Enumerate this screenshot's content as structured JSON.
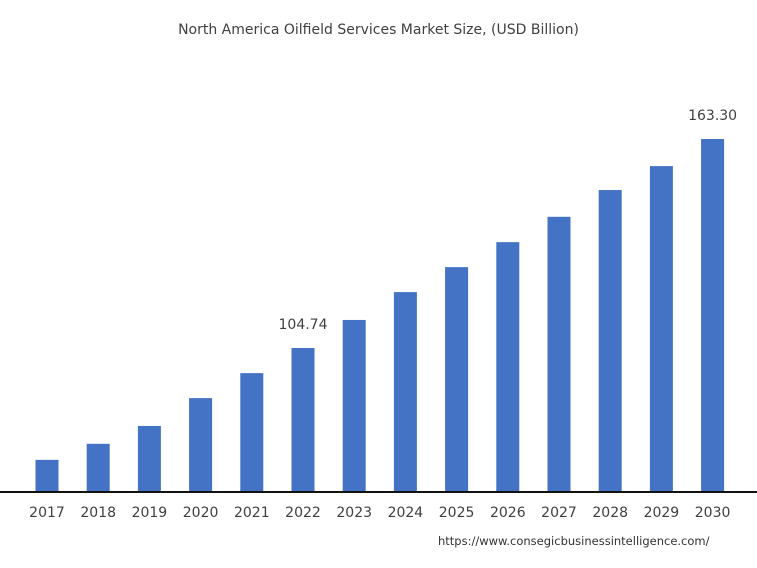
{
  "chart_data": {
    "type": "bar",
    "title": "North America Oilfield Services Market Size, (USD Billion)",
    "xlabel": "",
    "ylabel": "",
    "categories": [
      "2017",
      "2018",
      "2019",
      "2020",
      "2021",
      "2022",
      "2023",
      "2024",
      "2025",
      "2026",
      "2027",
      "2028",
      "2029",
      "2030"
    ],
    "values": [
      73.4,
      77.9,
      82.9,
      90.7,
      97.7,
      104.74,
      112.6,
      120.4,
      127.4,
      134.4,
      141.5,
      149.0,
      155.7,
      163.3
    ],
    "data_labels": {
      "2022": "104.74",
      "2030": "163.30"
    },
    "bar_color": "#4472C4",
    "grid": false,
    "legend": "none"
  },
  "source": "https://www.consegicbusinessintelligence.com/"
}
